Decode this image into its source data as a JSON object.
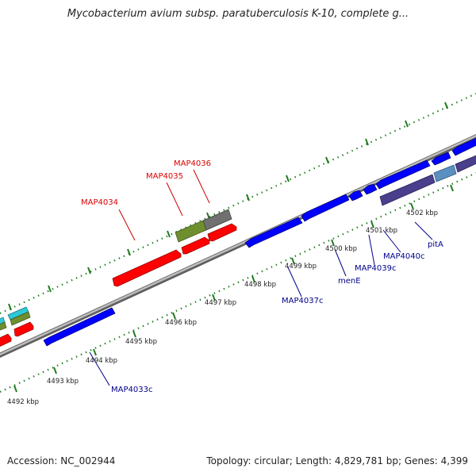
{
  "title": "Mycobacterium avium subsp. paratuberculosis K-10, complete g...",
  "footer": {
    "accession": "Accession: NC_002944",
    "summary": "Topology: circular; Length: 4,829,781 bp; Genes: 4,399"
  },
  "kbp_labels": [
    "4492 kbp",
    "4493 kbp",
    "4494 kbp",
    "4495 kbp",
    "4496 kbp",
    "4497 kbp",
    "4498 kbp",
    "4499 kbp",
    "4500 kbp",
    "4501 kbp",
    "4502 kbp"
  ],
  "forward_labels": [
    "MAP4034",
    "MAP4035",
    "MAP4036"
  ],
  "reverse_labels": [
    "MAP4033c",
    "MAP4037c",
    "menE",
    "MAP4039c",
    "MAP4040c",
    "pitA"
  ],
  "colors": {
    "forward_gene": "#ff0000",
    "forward_label": "#dd0000",
    "reverse_gene": "#0000ff",
    "reverse_label": "#00008b",
    "backbone": "#9a9a9a",
    "tick": "#1e7b1e",
    "olive_gene": "#6f8f2f",
    "grey_gene": "#707070",
    "cyan_gene": "#2ec8d8",
    "steel_gene": "#5a8fc0",
    "slate_gene": "#4a3f8c"
  }
}
